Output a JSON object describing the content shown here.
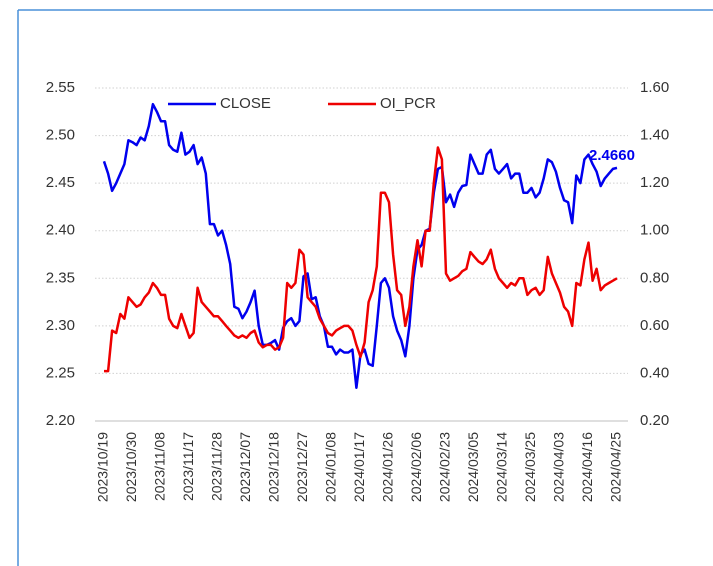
{
  "chart_data": {
    "type": "line",
    "categories": [
      "2023/10/19",
      null,
      null,
      null,
      null,
      null,
      null,
      "2023/10/30",
      null,
      null,
      null,
      null,
      null,
      null,
      "2023/11/08",
      null,
      null,
      null,
      null,
      null,
      null,
      "2023/11/17",
      null,
      null,
      null,
      null,
      null,
      null,
      "2023/11/28",
      null,
      null,
      null,
      null,
      null,
      null,
      "2023/12/07",
      null,
      null,
      null,
      null,
      null,
      null,
      "2023/12/18",
      null,
      null,
      null,
      null,
      null,
      null,
      "2023/12/27",
      null,
      null,
      null,
      null,
      null,
      null,
      "2024/01/08",
      null,
      null,
      null,
      null,
      null,
      null,
      "2024/01/17",
      null,
      null,
      null,
      null,
      null,
      null,
      "2024/01/26",
      null,
      null,
      null,
      null,
      null,
      null,
      "2024/02/06",
      null,
      null,
      null,
      null,
      null,
      null,
      "2024/02/23",
      null,
      null,
      null,
      null,
      null,
      null,
      "2024/03/05",
      null,
      null,
      null,
      null,
      null,
      null,
      "2024/03/14",
      null,
      null,
      null,
      null,
      null,
      null,
      "2024/03/25",
      null,
      null,
      null,
      null,
      null,
      null,
      "2024/04/03",
      null,
      null,
      null,
      null,
      null,
      null,
      "2024/04/16",
      null,
      null,
      null,
      null,
      null,
      null,
      "2024/04/25"
    ],
    "series": [
      {
        "name": "CLOSE",
        "color": "#0000ee",
        "axis": "y",
        "values": [
          2.473,
          2.46,
          2.442,
          2.45,
          2.46,
          2.47,
          2.495,
          2.493,
          2.49,
          2.498,
          2.495,
          2.51,
          2.533,
          2.525,
          2.515,
          2.515,
          2.49,
          2.485,
          2.483,
          2.503,
          2.48,
          2.483,
          2.49,
          2.47,
          2.477,
          2.46,
          2.407,
          2.407,
          2.395,
          2.4,
          2.385,
          2.365,
          2.32,
          2.318,
          2.308,
          2.315,
          2.325,
          2.337,
          2.3,
          2.28,
          2.28,
          2.282,
          2.285,
          2.275,
          2.298,
          2.305,
          2.308,
          2.3,
          2.305,
          2.352,
          2.355,
          2.328,
          2.33,
          2.31,
          2.3,
          2.278,
          2.278,
          2.27,
          2.275,
          2.272,
          2.272,
          2.275,
          2.235,
          2.27,
          2.275,
          2.26,
          2.258,
          2.3,
          2.345,
          2.35,
          2.34,
          2.31,
          2.295,
          2.285,
          2.268,
          2.3,
          2.35,
          2.38,
          2.385,
          2.4,
          2.402,
          2.44,
          2.465,
          2.467,
          2.43,
          2.438,
          2.425,
          2.44,
          2.447,
          2.448,
          2.48,
          2.47,
          2.46,
          2.46,
          2.48,
          2.485,
          2.465,
          2.46,
          2.465,
          2.47,
          2.455,
          2.46,
          2.46,
          2.44,
          2.44,
          2.445,
          2.435,
          2.44,
          2.455,
          2.475,
          2.472,
          2.462,
          2.445,
          2.432,
          2.43,
          2.408,
          2.458,
          2.45,
          2.475,
          2.48,
          2.47,
          2.462,
          2.447,
          2.455,
          2.46,
          2.465,
          2.466
        ],
        "value_labels": [
          null,
          null,
          null,
          null,
          null,
          null,
          null,
          null,
          null,
          null,
          null,
          null,
          null,
          null,
          null,
          null,
          null,
          null,
          null,
          null,
          null,
          null,
          null,
          null,
          null,
          null,
          null,
          null,
          null,
          null,
          null,
          null,
          null,
          null,
          null,
          null,
          null,
          null,
          null,
          null,
          null,
          null,
          null,
          null,
          null,
          null,
          null,
          null,
          null,
          null,
          null,
          null,
          null,
          null,
          null,
          null,
          null,
          null,
          null,
          null,
          null,
          null,
          null,
          null,
          null,
          null,
          null,
          null,
          null,
          null,
          null,
          null,
          null,
          null,
          null,
          null,
          null,
          null,
          null,
          null,
          null,
          null,
          null,
          null,
          null,
          null,
          null,
          null,
          null,
          null,
          null,
          null,
          null,
          null,
          null,
          null,
          null,
          null,
          null,
          null,
          null,
          null,
          null,
          null,
          null,
          null,
          null,
          null,
          null,
          null,
          null,
          null,
          null,
          null,
          null,
          null,
          null,
          null,
          null,
          null,
          null,
          null,
          null,
          null,
          null,
          null,
          "2.4660"
        ]
      },
      {
        "name": "OI_PCR",
        "color": "#ee0000",
        "axis": "y2",
        "values": [
          0.41,
          0.41,
          0.58,
          0.57,
          0.65,
          0.63,
          0.72,
          0.7,
          0.68,
          0.69,
          0.72,
          0.74,
          0.78,
          0.76,
          0.73,
          0.73,
          0.63,
          0.6,
          0.59,
          0.65,
          0.6,
          0.55,
          0.57,
          0.76,
          0.7,
          0.68,
          0.66,
          0.64,
          0.64,
          0.62,
          0.6,
          0.58,
          0.56,
          0.55,
          0.56,
          0.55,
          0.57,
          0.58,
          0.53,
          0.51,
          0.52,
          0.52,
          0.5,
          0.51,
          0.55,
          0.78,
          0.76,
          0.78,
          0.92,
          0.9,
          0.72,
          0.7,
          0.68,
          0.63,
          0.6,
          0.57,
          0.56,
          0.58,
          0.59,
          0.6,
          0.6,
          0.58,
          0.52,
          0.47,
          0.53,
          0.7,
          0.75,
          0.85,
          1.16,
          1.16,
          1.12,
          0.9,
          0.75,
          0.73,
          0.6,
          0.68,
          0.85,
          0.96,
          0.85,
          1.0,
          1.0,
          1.2,
          1.35,
          1.3,
          0.82,
          0.79,
          0.8,
          0.81,
          0.83,
          0.84,
          0.91,
          0.89,
          0.87,
          0.86,
          0.88,
          0.92,
          0.84,
          0.8,
          0.78,
          0.76,
          0.78,
          0.77,
          0.8,
          0.8,
          0.73,
          0.75,
          0.76,
          0.73,
          0.75,
          0.89,
          0.82,
          0.78,
          0.74,
          0.68,
          0.66,
          0.6,
          0.78,
          0.77,
          0.88,
          0.95,
          0.79,
          0.84,
          0.75,
          0.77,
          0.78,
          0.79,
          0.8
        ]
      }
    ],
    "ylim": [
      2.2,
      2.55
    ],
    "yticks": [
      {
        "value": 2.2,
        "label": "2.20"
      },
      2.25,
      {
        "value": 2.3,
        "label": "2.30"
      },
      2.35,
      {
        "value": 2.4,
        "label": "2.40"
      },
      2.45,
      {
        "value": 2.5,
        "label": "2.50"
      },
      2.55
    ],
    "y2lim": [
      0.2,
      1.6
    ],
    "y2ticks": [
      {
        "value": 0.2,
        "label": "0.20"
      },
      {
        "value": 0.4,
        "label": "0.40"
      },
      {
        "value": 0.6,
        "label": "0.60"
      },
      {
        "value": 0.8,
        "label": "0.80"
      },
      {
        "value": 1.0,
        "label": "1.00"
      },
      {
        "value": 1.2,
        "label": "1.20"
      },
      {
        "value": 1.4,
        "label": "1.40"
      },
      {
        "value": 1.6,
        "label": "1.60"
      }
    ],
    "grid": true,
    "legend": "top-left"
  }
}
